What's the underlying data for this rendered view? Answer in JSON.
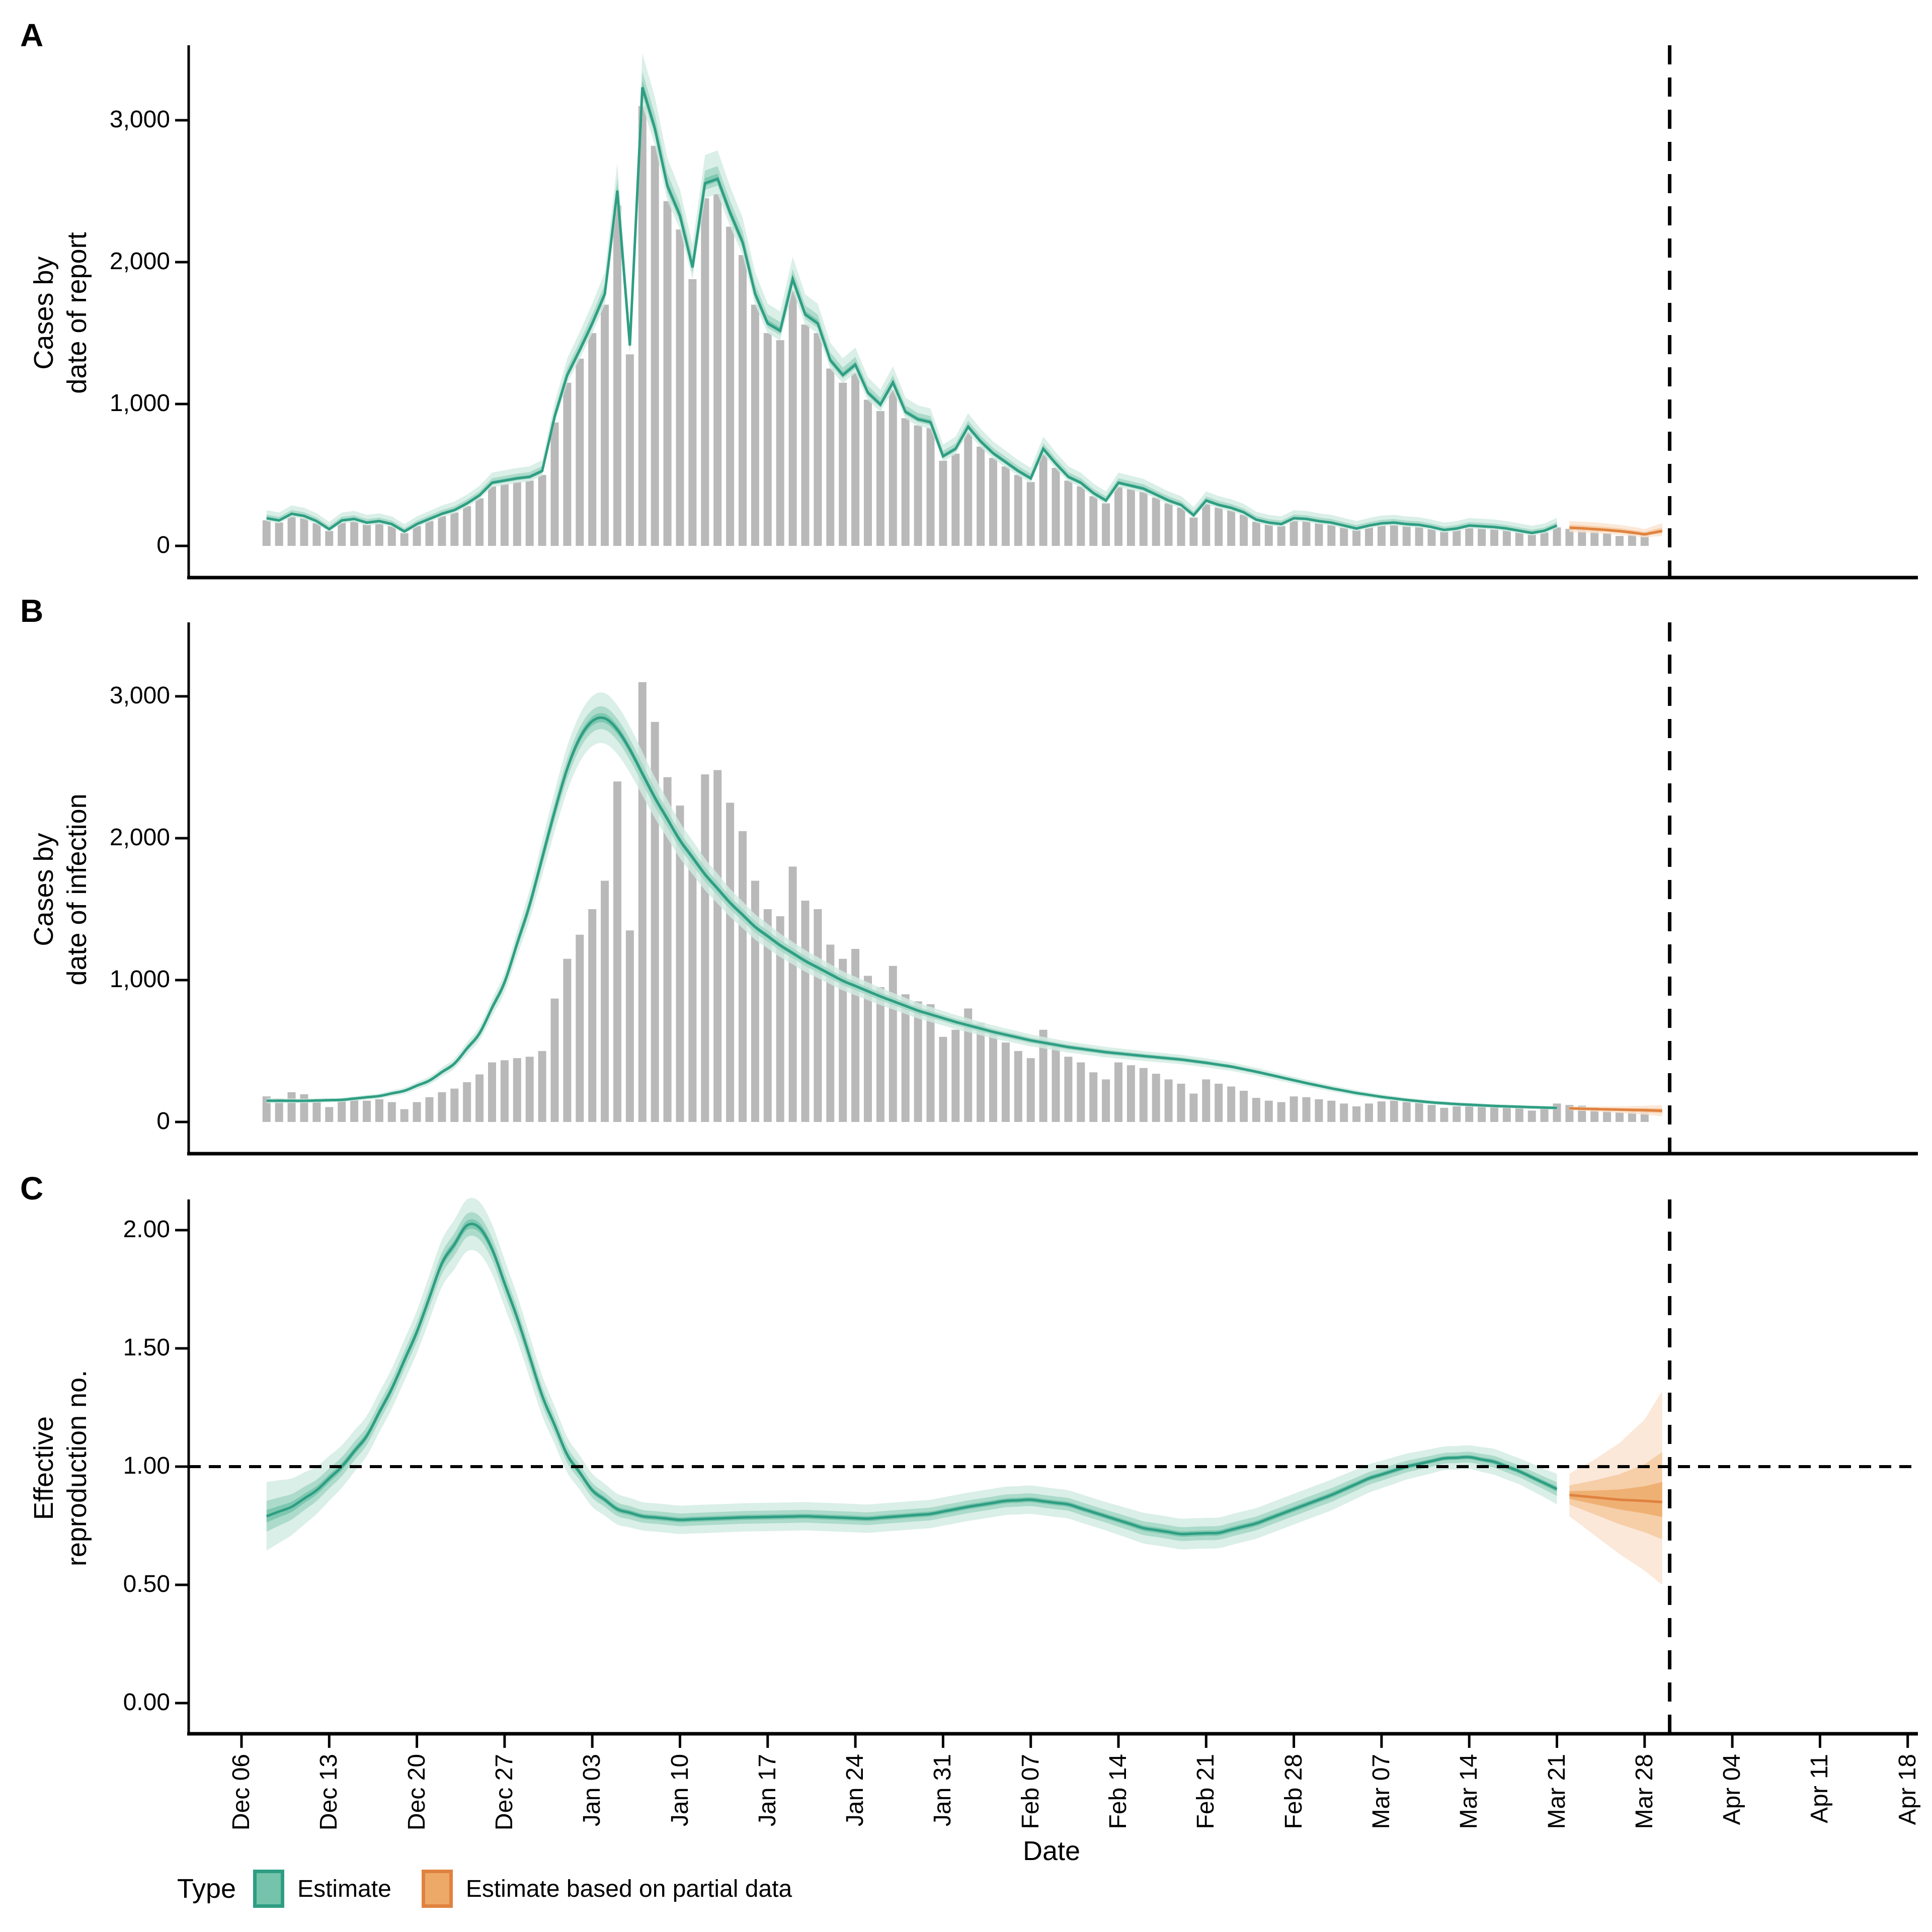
{
  "panels": [
    {
      "letter": "A",
      "y_title": "Cases by\ndate of report",
      "y_ticks": [
        "0",
        "1,000",
        "2,000",
        "3,000"
      ]
    },
    {
      "letter": "B",
      "y_title": "Cases by\ndate of infection",
      "y_ticks": [
        "0",
        "1,000",
        "2,000",
        "3,000"
      ]
    },
    {
      "letter": "C",
      "y_title": "Effective\nreproduction no.",
      "y_ticks": [
        "0.00",
        "0.50",
        "1.00",
        "1.50",
        "2.00"
      ]
    }
  ],
  "x_axis": {
    "title": "Date",
    "tick_days": [
      0,
      7,
      14,
      21,
      28,
      35,
      42,
      49,
      56,
      63,
      70,
      77,
      84,
      91,
      98,
      105,
      112,
      119,
      126,
      133
    ],
    "tick_labels": [
      "Dec 06",
      "Dec 13",
      "Dec 20",
      "Dec 27",
      "Jan 03",
      "Jan 10",
      "Jan 17",
      "Jan 24",
      "Jan 31",
      "Feb 07",
      "Feb 14",
      "Feb 21",
      "Feb 28",
      "Mar 07",
      "Mar 14",
      "Mar 21",
      "Mar 28",
      "Apr 04",
      "Apr 11",
      "Apr 18"
    ]
  },
  "legend": {
    "title": "Type",
    "items": [
      {
        "label": "Estimate",
        "key": "estimate"
      },
      {
        "label": "Estimate based on partial data",
        "key": "partial"
      }
    ]
  },
  "colors": {
    "bar": "#b9b9b9",
    "axis": "#000000",
    "dashed_line": "#000000",
    "estimate": {
      "line": "#2e9e83",
      "band20": "#74c3aa",
      "band50": "#a2d7c5",
      "band90": "#d2ebe2"
    },
    "partial": {
      "line": "#e0823f",
      "band20": "#eda968",
      "band50": "#f4c89d",
      "band90": "#fae3cf"
    }
  },
  "ci": {
    "levels": [
      90,
      50,
      20
    ],
    "hw_ratios": [
      1,
      0.45,
      0.18
    ]
  },
  "chart_data": [
    {
      "panel": "A",
      "type": "bar+ribbon",
      "title": "Cases by date of report",
      "ylim": [
        0,
        3530
      ],
      "y_tick_values": [
        0,
        1000,
        2000,
        3000
      ],
      "vline_day": 114,
      "bars": {
        "start_day": 2,
        "note": "daily reported cases, Dec 08 to Mar 28",
        "values": [
          180,
          165,
          210,
          195,
          160,
          105,
          165,
          175,
          150,
          160,
          140,
          90,
          140,
          175,
          210,
          235,
          280,
          335,
          420,
          435,
          450,
          460,
          500,
          870,
          1150,
          1320,
          1500,
          1700,
          2400,
          1350,
          3100,
          2820,
          2430,
          2230,
          1880,
          2450,
          2480,
          2250,
          2050,
          1700,
          1500,
          1450,
          1800,
          1560,
          1500,
          1250,
          1150,
          1220,
          1030,
          950,
          1100,
          900,
          850,
          830,
          600,
          650,
          800,
          700,
          620,
          560,
          500,
          450,
          650,
          550,
          460,
          420,
          350,
          300,
          420,
          400,
          380,
          340,
          300,
          270,
          200,
          300,
          270,
          250,
          220,
          170,
          150,
          140,
          180,
          175,
          160,
          150,
          130,
          110,
          130,
          145,
          150,
          140,
          135,
          120,
          100,
          110,
          130,
          125,
          120,
          110,
          95,
          80,
          95,
          130,
          120,
          115,
          105,
          90,
          70,
          95,
          100
        ]
      },
      "estimate": {
        "day_range": [
          2,
          105
        ],
        "rule_from_bars": {
          "med_mult": 1.04,
          "med_add": 8,
          "hi_frac": 0.06,
          "hi_add": 45,
          "lo_frac": 0.035,
          "lo_add": 15
        }
      },
      "partial": {
        "points_day_lo_med_hi": [
          [
            106,
            98,
            128,
            175
          ],
          [
            107,
            95,
            124,
            170
          ],
          [
            108,
            90,
            118,
            165
          ],
          [
            109,
            85,
            112,
            157
          ],
          [
            110,
            78,
            104,
            148
          ],
          [
            111,
            70,
            94,
            135
          ],
          [
            112,
            60,
            82,
            120
          ],
          [
            113.4,
            70,
            105,
            160
          ]
        ]
      }
    },
    {
      "panel": "B",
      "type": "bar+ribbon",
      "title": "Cases by date of infection",
      "ylim": [
        0,
        3530
      ],
      "y_tick_values": [
        0,
        1000,
        2000,
        3000
      ],
      "vline_day": 114,
      "bars_same_as_panel": "A",
      "estimate": {
        "points_day_med_hw90": [
          [
            2,
            150,
            18
          ],
          [
            5,
            149,
            15
          ],
          [
            8,
            156,
            15
          ],
          [
            11,
            183,
            18
          ],
          [
            13,
            220,
            22
          ],
          [
            15,
            292,
            28
          ],
          [
            17,
            412,
            36
          ],
          [
            19,
            625,
            50
          ],
          [
            21,
            985,
            70
          ],
          [
            23,
            1530,
            105
          ],
          [
            24,
            1860,
            122
          ],
          [
            25,
            2190,
            142
          ],
          [
            26,
            2490,
            158
          ],
          [
            27,
            2705,
            168
          ],
          [
            28,
            2825,
            176
          ],
          [
            29,
            2845,
            178
          ],
          [
            30,
            2765,
            172
          ],
          [
            31,
            2625,
            164
          ],
          [
            32,
            2455,
            154
          ],
          [
            33,
            2285,
            144
          ],
          [
            35,
            1985,
            126
          ],
          [
            37,
            1745,
            112
          ],
          [
            39,
            1545,
            99
          ],
          [
            41,
            1375,
            90
          ],
          [
            43,
            1245,
            83
          ],
          [
            45,
            1135,
            77
          ],
          [
            48,
            995,
            68
          ],
          [
            51,
            885,
            61
          ],
          [
            54,
            785,
            55
          ],
          [
            57,
            705,
            50
          ],
          [
            60,
            635,
            46
          ],
          [
            63,
            575,
            42
          ],
          [
            66,
            528,
            39
          ],
          [
            69,
            492,
            37
          ],
          [
            72,
            465,
            35
          ],
          [
            75,
            440,
            33
          ],
          [
            77,
            417,
            32
          ],
          [
            79,
            390,
            30
          ],
          [
            81,
            354,
            28
          ],
          [
            83,
            314,
            26
          ],
          [
            85,
            274,
            24
          ],
          [
            87,
            237,
            22
          ],
          [
            89,
            204,
            20
          ],
          [
            91,
            177,
            18
          ],
          [
            93,
            155,
            16
          ],
          [
            95,
            138,
            15
          ],
          [
            97,
            126,
            14
          ],
          [
            100,
            113,
            13
          ],
          [
            103,
            104,
            12
          ],
          [
            105,
            99,
            12
          ]
        ]
      },
      "partial": {
        "points_day_lo_med_hi": [
          [
            106,
            83,
            96,
            109
          ],
          [
            108,
            74,
            91,
            108
          ],
          [
            110,
            64,
            87,
            110
          ],
          [
            112,
            52,
            83,
            114
          ],
          [
            113.4,
            40,
            79,
            119
          ]
        ]
      }
    },
    {
      "panel": "C",
      "type": "ribbon",
      "title": "Effective reproduction no.",
      "ylim": [
        0,
        2.2
      ],
      "y_tick_values": [
        0,
        0.5,
        1,
        1.5,
        2
      ],
      "hline": 1.0,
      "vline_day": 114,
      "estimate": {
        "points_day_med_hw90": [
          [
            2,
            0.79,
            0.145
          ],
          [
            4,
            0.83,
            0.12
          ],
          [
            6,
            0.9,
            0.1
          ],
          [
            8,
            1.0,
            0.09
          ],
          [
            10,
            1.13,
            0.085
          ],
          [
            12,
            1.33,
            0.085
          ],
          [
            14,
            1.57,
            0.09
          ],
          [
            16,
            1.86,
            0.1
          ],
          [
            18,
            2.02,
            0.11
          ],
          [
            19,
            2.01,
            0.11
          ],
          [
            20,
            1.92,
            0.105
          ],
          [
            22,
            1.63,
            0.095
          ],
          [
            24,
            1.3,
            0.085
          ],
          [
            26,
            1.05,
            0.075
          ],
          [
            28,
            0.9,
            0.07
          ],
          [
            30,
            0.82,
            0.065
          ],
          [
            32,
            0.79,
            0.06
          ],
          [
            35,
            0.775,
            0.06
          ],
          [
            40,
            0.785,
            0.06
          ],
          [
            45,
            0.79,
            0.06
          ],
          [
            50,
            0.78,
            0.06
          ],
          [
            55,
            0.8,
            0.06
          ],
          [
            58,
            0.83,
            0.06
          ],
          [
            61,
            0.855,
            0.06
          ],
          [
            63,
            0.86,
            0.06
          ],
          [
            66,
            0.84,
            0.06
          ],
          [
            69,
            0.79,
            0.06
          ],
          [
            72,
            0.74,
            0.065
          ],
          [
            75,
            0.715,
            0.065
          ],
          [
            78,
            0.72,
            0.065
          ],
          [
            81,
            0.76,
            0.065
          ],
          [
            84,
            0.82,
            0.065
          ],
          [
            87,
            0.88,
            0.065
          ],
          [
            90,
            0.95,
            0.06
          ],
          [
            93,
            1.0,
            0.055
          ],
          [
            96,
            1.035,
            0.05
          ],
          [
            98,
            1.04,
            0.05
          ],
          [
            100,
            1.02,
            0.055
          ],
          [
            102,
            0.98,
            0.055
          ],
          [
            104,
            0.93,
            0.06
          ],
          [
            105,
            0.905,
            0.065
          ]
        ]
      },
      "partial": {
        "points_day_lo_med_hi": [
          [
            106,
            0.79,
            0.88,
            0.97
          ],
          [
            108,
            0.71,
            0.87,
            1.03
          ],
          [
            110,
            0.63,
            0.86,
            1.1
          ],
          [
            112,
            0.56,
            0.855,
            1.2
          ],
          [
            113.4,
            0.5,
            0.85,
            1.32
          ]
        ]
      }
    }
  ]
}
